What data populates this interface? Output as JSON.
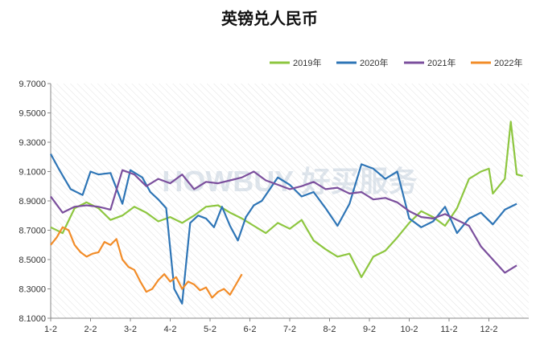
{
  "chart_data": {
    "type": "line",
    "title": "英镑兑人民币",
    "xlabel": "",
    "ylabel": "",
    "x_ticks": [
      "1-2",
      "2-2",
      "3-2",
      "4-2",
      "5-2",
      "6-2",
      "7-2",
      "8-2",
      "9-2",
      "10-2",
      "11-2",
      "12-2"
    ],
    "y_ticks": [
      "8.1000",
      "8.3000",
      "8.5000",
      "8.7000",
      "8.9000",
      "9.1000",
      "9.3000",
      "9.5000",
      "9.7000"
    ],
    "ylim": [
      8.1,
      9.7
    ],
    "grid": true,
    "legend_position": "top-right",
    "watermark": "HOWBUY 好买服务",
    "series": [
      {
        "name": "2019年",
        "color": "#8dc63f",
        "x": [
          0,
          0.3,
          0.6,
          0.9,
          1.2,
          1.5,
          1.8,
          2.1,
          2.4,
          2.7,
          3.0,
          3.3,
          3.6,
          3.9,
          4.2,
          4.5,
          4.8,
          5.1,
          5.4,
          5.7,
          6.0,
          6.3,
          6.6,
          6.9,
          7.2,
          7.5,
          7.8,
          8.1,
          8.4,
          8.7,
          9.0,
          9.3,
          9.6,
          9.9,
          10.2,
          10.5,
          10.8,
          11.1,
          11.4,
          11.7
        ],
        "values": [
          8.72,
          8.68,
          8.85,
          8.89,
          8.85,
          8.77,
          8.8,
          8.86,
          8.82,
          8.76,
          8.79,
          8.75,
          8.8,
          8.86,
          8.87,
          8.82,
          8.78,
          8.73,
          8.68,
          8.75,
          8.71,
          8.77,
          8.63,
          8.57,
          8.52,
          8.54,
          8.38,
          8.52,
          8.56,
          8.65,
          8.75,
          8.83,
          8.79,
          8.73,
          8.85,
          9.05,
          9.1,
          8.95,
          9.05,
          9.08
        ],
        "extra_points": [
          [
            11.0,
            9.12
          ],
          [
            11.55,
            9.44
          ],
          [
            11.85,
            9.07
          ]
        ]
      },
      {
        "name": "2020年",
        "color": "#2e75b6",
        "x": [
          0,
          0.2,
          0.5,
          0.8,
          1.0,
          1.2,
          1.5,
          1.8,
          2.0,
          2.3,
          2.5,
          2.7,
          2.9,
          3.1,
          3.3,
          3.5,
          3.7,
          3.9,
          4.1,
          4.3,
          4.5,
          4.7,
          4.9,
          5.1,
          5.3,
          5.5,
          5.7,
          6.0,
          6.3,
          6.6,
          6.9,
          7.2,
          7.5,
          7.8,
          8.1,
          8.4,
          8.7,
          9.0,
          9.3,
          9.6,
          9.9,
          10.2,
          10.5,
          10.8,
          11.1,
          11.4,
          11.7
        ],
        "values": [
          9.22,
          9.12,
          8.98,
          8.94,
          9.1,
          9.08,
          9.09,
          8.88,
          9.11,
          9.06,
          8.96,
          8.91,
          8.85,
          8.3,
          8.2,
          8.75,
          8.8,
          8.78,
          8.72,
          8.86,
          8.73,
          8.63,
          8.79,
          8.87,
          8.9,
          8.98,
          9.06,
          9.01,
          8.93,
          8.96,
          8.85,
          8.73,
          8.88,
          9.15,
          9.12,
          9.05,
          9.1,
          8.78,
          8.72,
          8.76,
          8.86,
          8.68,
          8.78,
          8.82,
          8.74,
          8.84,
          8.88
        ]
      },
      {
        "name": "2021年",
        "color": "#7b4f9d",
        "x": [
          0,
          0.3,
          0.6,
          0.9,
          1.2,
          1.5,
          1.8,
          2.1,
          2.4,
          2.7,
          3.0,
          3.3,
          3.6,
          3.9,
          4.2,
          4.5,
          4.8,
          5.1,
          5.4,
          5.7,
          6.0,
          6.3,
          6.6,
          6.9,
          7.2,
          7.5,
          7.8,
          8.1,
          8.4,
          8.7,
          9.0,
          9.3,
          9.6,
          9.9,
          10.2,
          10.5,
          10.8,
          11.1,
          11.4,
          11.7
        ],
        "values": [
          8.93,
          8.82,
          8.86,
          8.87,
          8.86,
          8.84,
          9.11,
          9.08,
          9.0,
          9.05,
          9.02,
          9.08,
          8.98,
          9.03,
          9.02,
          9.04,
          9.06,
          9.1,
          9.04,
          9.01,
          8.98,
          9.0,
          9.03,
          8.98,
          8.99,
          8.95,
          8.96,
          8.91,
          8.92,
          8.89,
          8.83,
          8.79,
          8.78,
          8.81,
          8.77,
          8.73,
          8.59,
          8.5,
          8.41,
          8.46
        ]
      },
      {
        "name": "2022年",
        "color": "#f28c28",
        "x": [
          0,
          0.15,
          0.3,
          0.45,
          0.6,
          0.75,
          0.9,
          1.05,
          1.2,
          1.35,
          1.5,
          1.65,
          1.8,
          1.95,
          2.1,
          2.25,
          2.4,
          2.55,
          2.7,
          2.85,
          3.0,
          3.15,
          3.3,
          3.45,
          3.6,
          3.75,
          3.9,
          4.05,
          4.2,
          4.35,
          4.5,
          4.65,
          4.8
        ],
        "values": [
          8.6,
          8.65,
          8.72,
          8.7,
          8.6,
          8.55,
          8.52,
          8.54,
          8.55,
          8.62,
          8.6,
          8.64,
          8.5,
          8.45,
          8.43,
          8.35,
          8.28,
          8.3,
          8.36,
          8.4,
          8.35,
          8.38,
          8.3,
          8.35,
          8.33,
          8.29,
          8.31,
          8.24,
          8.28,
          8.3,
          8.26,
          8.33,
          8.4
        ]
      }
    ]
  }
}
